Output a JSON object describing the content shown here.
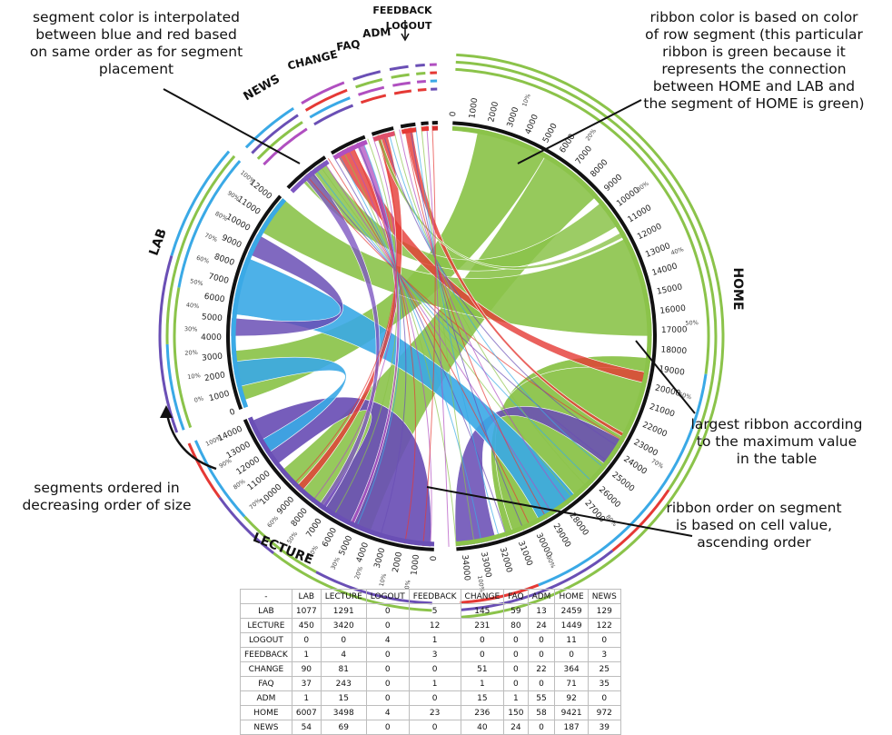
{
  "segments": [
    {
      "name": "HOME",
      "color": "#8bc34a",
      "ticks": [
        "0",
        "1000",
        "2000",
        "3000",
        "4000",
        "5000",
        "6000",
        "7000",
        "8000",
        "9000",
        "10000",
        "11000",
        "12000",
        "13000",
        "14000",
        "15000",
        "16000",
        "17000",
        "18000",
        "19000",
        "20000",
        "21000",
        "22000",
        "23000",
        "24000",
        "25000",
        "26000",
        "27000",
        "28000",
        "29000",
        "30000",
        "31000",
        "32000",
        "33000",
        "34000"
      ],
      "pct": [
        "10%",
        "20%",
        "30%",
        "40%",
        "50%",
        "60%",
        "70%",
        "80%",
        "90%",
        "100%"
      ]
    },
    {
      "name": "LECTURE",
      "color": "#6a4fb5",
      "ticks": [
        "0",
        "1000",
        "2000",
        "3000",
        "4000",
        "5000",
        "6000",
        "7000",
        "8000",
        "9000",
        "10000",
        "11000",
        "12000",
        "13000",
        "14000"
      ],
      "pct": [
        "0%",
        "10%",
        "20%",
        "30%",
        "40%",
        "50%",
        "60%",
        "70%",
        "80%",
        "90%",
        "100%"
      ]
    },
    {
      "name": "LAB",
      "color": "#3aa9e6",
      "ticks": [
        "0",
        "1000",
        "2000",
        "3000",
        "4000",
        "5000",
        "6000",
        "7000",
        "8000",
        "9000",
        "10000",
        "11000",
        "12000"
      ],
      "pct": [
        "0%",
        "10%",
        "20%",
        "30%",
        "40%",
        "50%",
        "60%",
        "70%",
        "80%",
        "90%",
        "100%"
      ]
    },
    {
      "name": "NEWS",
      "color": "#7a5cc7",
      "ticks": [],
      "pct": []
    },
    {
      "name": "CHANGE",
      "color": "#e05a5a",
      "ticks": [],
      "pct": []
    },
    {
      "name": "FAQ",
      "color": "#e94b4b",
      "ticks": [],
      "pct": []
    },
    {
      "name": "ADM",
      "color": "#e33",
      "ticks": [],
      "pct": []
    },
    {
      "name": "FEEDBACK",
      "color": "#d33",
      "ticks": [],
      "pct": []
    },
    {
      "name": "LOGOUT",
      "color": "#c22",
      "ticks": [],
      "pct": []
    }
  ],
  "annotations": {
    "top_left": "segment color is interpolated\nbetween blue and red based\non same order as for segment\nplacement",
    "top_right": "ribbon color is based on color\nof row segment (this particular\nribbon is green because it\nrepresents the connection\nbetween HOME and LAB  and\nthe segment of HOME is green)",
    "mid_right": "largest  ribbon according\nto the maximum value\nin the table",
    "bottom_left": "segments ordered in\ndecreasing order of size",
    "bottom_right": "ribbon order on segment\nis based on cell value,\nascending order"
  },
  "table": {
    "columns": [
      "-",
      "LAB",
      "LECTURE",
      "LOGOUT",
      "FEEDBACK",
      "CHANGE",
      "FAQ",
      "ADM",
      "HOME",
      "NEWS"
    ],
    "rows": [
      [
        "LAB",
        "1077",
        "1291",
        "0",
        "5",
        "145",
        "59",
        "13",
        "2459",
        "129"
      ],
      [
        "LECTURE",
        "450",
        "3420",
        "0",
        "12",
        "231",
        "80",
        "24",
        "1449",
        "122"
      ],
      [
        "LOGOUT",
        "0",
        "0",
        "4",
        "1",
        "0",
        "0",
        "0",
        "11",
        "0"
      ],
      [
        "FEEDBACK",
        "1",
        "4",
        "0",
        "3",
        "0",
        "0",
        "0",
        "0",
        "3"
      ],
      [
        "CHANGE",
        "90",
        "81",
        "0",
        "0",
        "51",
        "0",
        "22",
        "364",
        "25"
      ],
      [
        "FAQ",
        "37",
        "243",
        "0",
        "1",
        "1",
        "0",
        "0",
        "71",
        "35"
      ],
      [
        "ADM",
        "1",
        "15",
        "0",
        "0",
        "15",
        "1",
        "55",
        "92",
        "0"
      ],
      [
        "HOME",
        "6007",
        "3498",
        "4",
        "23",
        "236",
        "150",
        "58",
        "9421",
        "972"
      ],
      [
        "NEWS",
        "54",
        "69",
        "0",
        "0",
        "40",
        "24",
        "0",
        "187",
        "39"
      ]
    ]
  },
  "colors": {
    "green": "#8bc34a",
    "blue": "#3aa9e6",
    "purple": "#6a4fb5",
    "red": "#e53935",
    "magenta": "#b04fc0"
  }
}
